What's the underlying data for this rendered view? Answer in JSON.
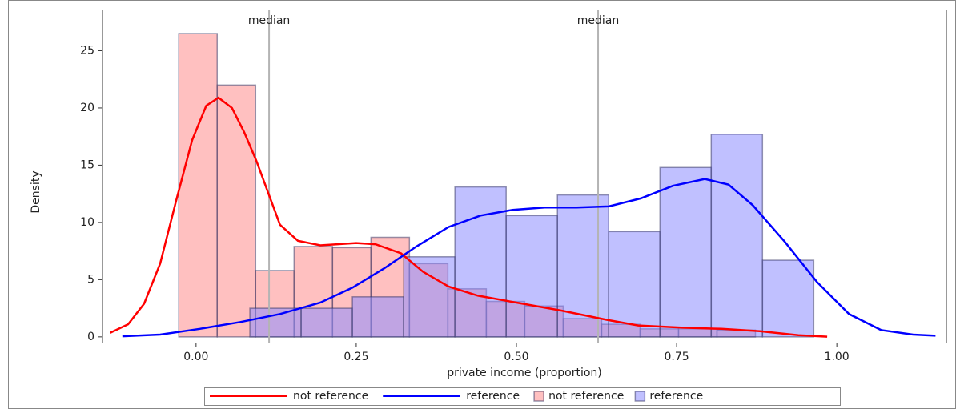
{
  "chart_data": {
    "type": "histogram",
    "xlabel": "private income (proportion)",
    "ylabel": "Density",
    "xlim": [
      -0.146,
      1.171
    ],
    "ylim": [
      -0.5,
      28.6
    ],
    "xticks": [
      {
        "value": 0,
        "label": "0.00"
      },
      {
        "value": 0.25,
        "label": "0.25"
      },
      {
        "value": 0.5,
        "label": "0.50"
      },
      {
        "value": 0.75,
        "label": "0.75"
      },
      {
        "value": 1,
        "label": "1.00"
      }
    ],
    "yticks": [
      0,
      5,
      10,
      15,
      20,
      25
    ],
    "histograms": [
      {
        "name": "not reference",
        "color": "#ff8c8c",
        "bins": [
          -0.027,
          0.033,
          0.093,
          0.153,
          0.213,
          0.273,
          0.333,
          0.393,
          0.453,
          0.513,
          0.573,
          0.633,
          0.693,
          0.753,
          0.813,
          0.873
        ],
        "values": [
          26.5,
          22,
          5.8,
          7.9,
          7.8,
          8.7,
          6.4,
          4.2,
          3.1,
          2.7,
          1.6,
          1.1,
          0.7,
          0.7,
          0.6
        ]
      },
      {
        "name": "reference",
        "color": "#8c8cff",
        "bins": [
          0.084,
          0.164,
          0.244,
          0.324,
          0.404,
          0.484,
          0.564,
          0.644,
          0.724,
          0.804,
          0.884,
          0.964
        ],
        "values": [
          2.5,
          2.5,
          3.5,
          7.0,
          13.1,
          10.6,
          12.4,
          9.2,
          14.8,
          17.7,
          6.7
        ]
      }
    ],
    "density_curves": [
      {
        "name": "not reference",
        "color": "#ff0000",
        "x": [
          -0.134,
          -0.106,
          -0.081,
          -0.056,
          -0.031,
          -0.006,
          0.016,
          0.035,
          0.056,
          0.075,
          0.094,
          0.131,
          0.159,
          0.194,
          0.25,
          0.28,
          0.32,
          0.354,
          0.394,
          0.44,
          0.5,
          0.57,
          0.64,
          0.69,
          0.76,
          0.82,
          0.88,
          0.94,
          0.985
        ],
        "values": [
          0.35,
          1.1,
          2.9,
          6.4,
          11.9,
          17.2,
          20.2,
          20.9,
          20.0,
          17.9,
          15.4,
          9.8,
          8.4,
          8.0,
          8.2,
          8.1,
          7.3,
          5.7,
          4.4,
          3.6,
          3.0,
          2.3,
          1.5,
          1.0,
          0.8,
          0.7,
          0.5,
          0.15,
          0.02
        ]
      },
      {
        "name": "reference",
        "color": "#0000ff",
        "x": [
          -0.115,
          -0.056,
          0.006,
          0.069,
          0.131,
          0.194,
          0.244,
          0.294,
          0.344,
          0.394,
          0.444,
          0.494,
          0.544,
          0.594,
          0.644,
          0.694,
          0.744,
          0.794,
          0.831,
          0.869,
          0.919,
          0.969,
          1.019,
          1.069,
          1.119,
          1.154
        ],
        "values": [
          0.05,
          0.2,
          0.7,
          1.3,
          2.0,
          3.0,
          4.3,
          6.0,
          7.9,
          9.6,
          10.6,
          11.1,
          11.3,
          11.3,
          11.4,
          12.1,
          13.2,
          13.8,
          13.3,
          11.5,
          8.3,
          4.8,
          2.0,
          0.6,
          0.2,
          0.1
        ]
      }
    ],
    "reference_lines": [
      {
        "label": "median",
        "x": 0.114,
        "color": "#b4b4b4"
      },
      {
        "label": "median",
        "x": 0.6275,
        "color": "#b4b4b4"
      }
    ],
    "legend": "bottom"
  }
}
